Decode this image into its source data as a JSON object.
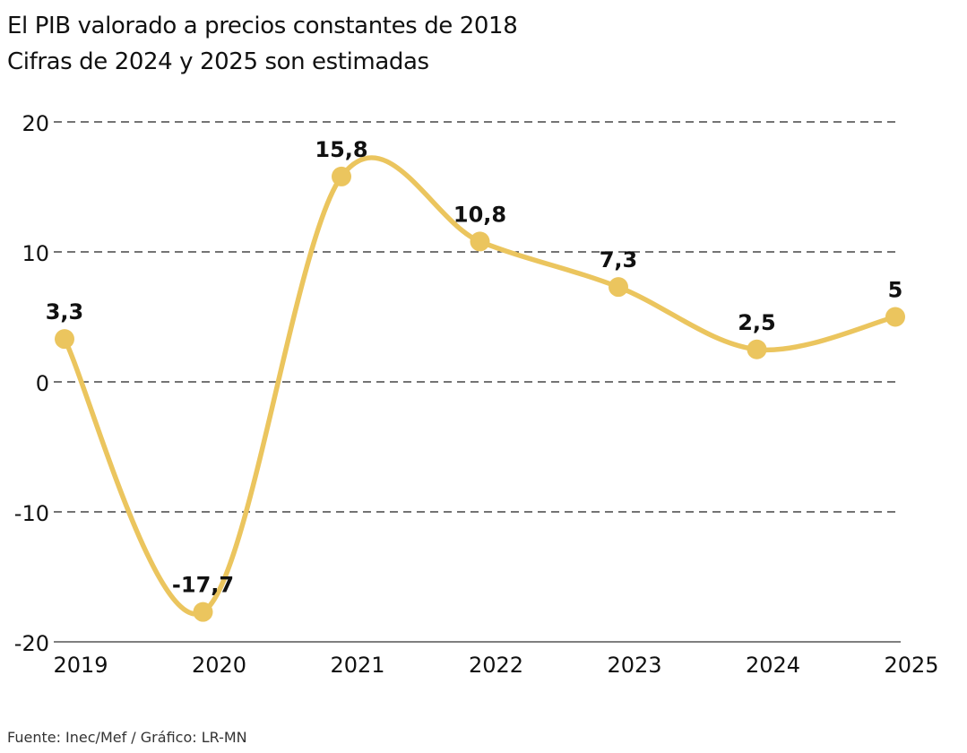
{
  "header": {
    "title": "El PIB valorado a precios constantes de 2018",
    "subtitle": "Cifras de 2024 y 2025 son estimadas"
  },
  "footer": {
    "source": "Fuente: Inec/Mef / Gráfico: LR-MN"
  },
  "colors": {
    "line": "#EBC55E",
    "grid": "#222222",
    "axis": "#333333"
  },
  "chart_data": {
    "type": "line",
    "title": "El PIB valorado a precios constantes de 2018",
    "subtitle": "Cifras de 2024 y 2025 son estimadas",
    "xlabel": "",
    "ylabel": "",
    "categories": [
      "2019",
      "2020",
      "2021",
      "2022",
      "2023",
      "2024",
      "2025"
    ],
    "series": [
      {
        "values": [
          3.3,
          -17.7,
          15.8,
          10.8,
          7.3,
          2.5,
          5
        ],
        "labels": [
          "3,3",
          "-17,7",
          "15,8",
          "10,8",
          "7,3",
          "2,5",
          "5"
        ]
      }
    ],
    "ylim": [
      -20,
      20
    ],
    "yticks": [
      20,
      10,
      0,
      -10,
      -20
    ],
    "ytick_labels": [
      "20",
      "10",
      "0",
      "-10",
      "-20"
    ],
    "grid": "horizontal dashed",
    "legend": "none",
    "smooth": true
  }
}
